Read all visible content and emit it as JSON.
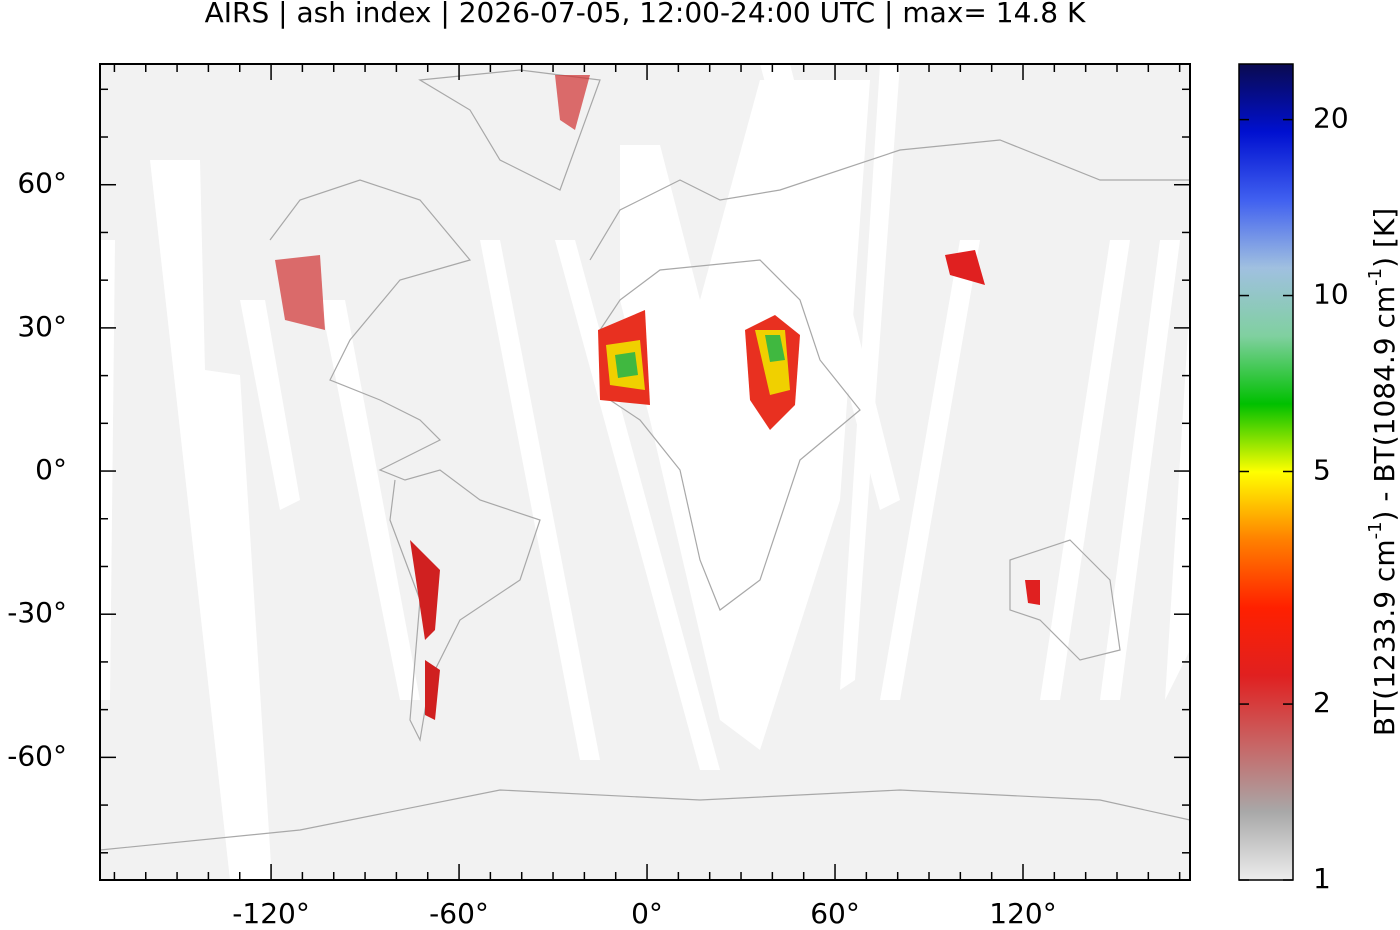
{
  "chart_data": {
    "type": "map",
    "title": "AIRS | ash index | 2026-07-05, 12:00-24:00 UTC | max= 14.8 K",
    "xlim": [
      -174.6,
      173.3
    ],
    "ylim": [
      -85.7,
      85.3
    ],
    "xticks": [
      {
        "value": -120,
        "label": "-120°"
      },
      {
        "value": -60,
        "label": "-60°"
      },
      {
        "value": 0,
        "label": "0°"
      },
      {
        "value": 60,
        "label": "60°"
      },
      {
        "value": 120,
        "label": "120°"
      }
    ],
    "yticks": [
      {
        "value": 60,
        "label": "60°"
      },
      {
        "value": 30,
        "label": "30°"
      },
      {
        "value": 0,
        "label": "0°"
      },
      {
        "value": -30,
        "label": "-30°"
      },
      {
        "value": -60,
        "label": "-60°"
      }
    ],
    "xminorticks": [
      -170,
      -160,
      -150,
      -140,
      -130,
      -110,
      -100,
      -90,
      -80,
      -70,
      -50,
      -40,
      -30,
      -20,
      -10,
      10,
      20,
      30,
      40,
      50,
      70,
      80,
      90,
      100,
      110,
      130,
      140,
      150,
      160,
      170
    ],
    "yminorticks": [
      80,
      70,
      50,
      40,
      20,
      10,
      -10,
      -20,
      -40,
      -50,
      -70,
      -80
    ],
    "colorbar": {
      "log": true,
      "lim": [
        1,
        24.9
      ],
      "ticks": [
        1,
        2,
        5,
        10,
        20
      ],
      "label": [
        "BT(1233.9 cm",
        "-1",
        ") - BT(1084.9 cm",
        "-1",
        ") [K]"
      ],
      "colors": [
        "#ececec",
        "#a8a8a8",
        "#c86464",
        "#e02020",
        "#ff2000",
        "#ff8000",
        "#ffff00",
        "#00c000",
        "#80d0a0",
        "#a0c0e0",
        "#4060f0",
        "#0010d0",
        "#0a0a50"
      ]
    }
  }
}
